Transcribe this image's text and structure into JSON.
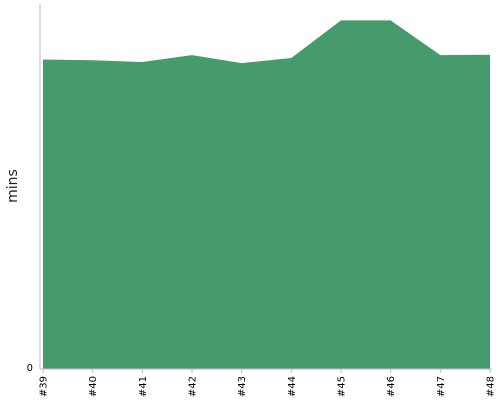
{
  "chart_data": {
    "type": "area",
    "title": "",
    "xlabel": "",
    "ylabel": "mins",
    "categories": [
      "#39",
      "#40",
      "#41",
      "#42",
      "#43",
      "#44",
      "#45",
      "#46",
      "#47",
      "#48"
    ],
    "series": [
      {
        "values": [
          84.8,
          84.6,
          84.1,
          86.0,
          83.8,
          85.2,
          95.5,
          95.5,
          86.0,
          86.1
        ],
        "color": "#459b6b"
      }
    ],
    "ylim": [
      0,
      100
    ],
    "yticks": [
      0
    ],
    "grid": false,
    "legend": "none"
  }
}
